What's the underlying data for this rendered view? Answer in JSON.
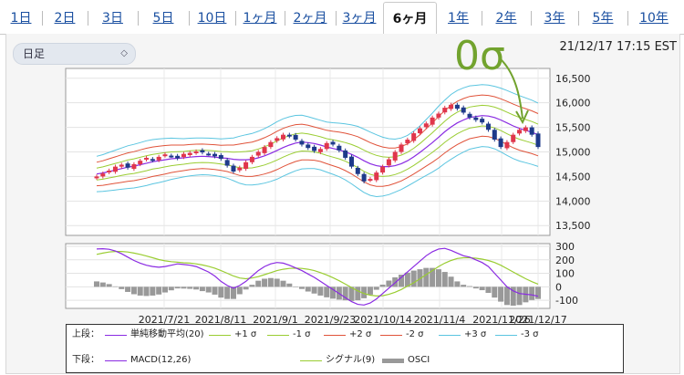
{
  "tabs": [
    "1日",
    "2日",
    "3日",
    "5日",
    "10日",
    "1ヶ月",
    "2ヶ月",
    "3ヶ月",
    "6ヶ月",
    "1年",
    "2年",
    "3年",
    "5年",
    "10年"
  ],
  "active_tab": 8,
  "period_select": {
    "value": "日足"
  },
  "timestamp": "21/12/17 17:15 EST",
  "annotation": "0σ",
  "colors": {
    "accent": "#1a4fa0",
    "sma": "#8a2be2",
    "sig1": "#9acd32",
    "sig2": "#e0533a",
    "sig3": "#5bc5e0",
    "up": "#e0364c",
    "down": "#1e3a8a",
    "osci": "#999999",
    "annot": "#72a32e"
  },
  "legend": {
    "top_label": "上段：",
    "bottom_label": "下段：",
    "top_items": [
      {
        "label": "単純移動平均(20)",
        "color_key": "sma"
      },
      {
        "label": "+1 σ",
        "color_key": "sig1"
      },
      {
        "label": "-1 σ",
        "color_key": "sig1"
      },
      {
        "label": "+2 σ",
        "color_key": "sig2"
      },
      {
        "label": "-2 σ",
        "color_key": "sig2"
      },
      {
        "label": "+3 σ",
        "color_key": "sig3"
      },
      {
        "label": "-3 σ",
        "color_key": "sig3"
      }
    ],
    "bottom_items": [
      {
        "label": "MACD(12,26)",
        "color_key": "sma"
      },
      {
        "label": "シグナル(9)",
        "color_key": "sig1"
      },
      {
        "label": "OSCI",
        "color_key": "osci"
      }
    ]
  },
  "chart_data": {
    "type": "line",
    "x_tick_labels": [
      "2021/7/21",
      "2021/8/11",
      "2021/9/1",
      "2021/9/23",
      "2021/10/14",
      "2021/11/4",
      "2021/11/26",
      "2021/12/17"
    ],
    "price": {
      "ylim": [
        13300,
        16700
      ],
      "y_ticks": [
        "16,500",
        "16,000",
        "15,500",
        "15,000",
        "14,500",
        "14,000",
        "13,500"
      ],
      "y_tick_values": [
        16500,
        16000,
        15500,
        15000,
        14500,
        14000,
        13500
      ],
      "close": [
        14500,
        14560,
        14620,
        14700,
        14740,
        14680,
        14750,
        14820,
        14880,
        14830,
        14900,
        14950,
        14920,
        14870,
        14960,
        14980,
        15010,
        14990,
        14960,
        14910,
        14860,
        14720,
        14600,
        14680,
        14790,
        14900,
        15000,
        15100,
        15200,
        15280,
        15350,
        15320,
        15250,
        15150,
        15080,
        15020,
        15060,
        15180,
        15150,
        15030,
        14880,
        14700,
        14550,
        14400,
        14450,
        14580,
        14700,
        14850,
        15000,
        15150,
        15250,
        15380,
        15480,
        15580,
        15700,
        15780,
        15900,
        15960,
        15880,
        15800,
        15700,
        15650,
        15600,
        15450,
        15250,
        15100,
        15200,
        15350,
        15450,
        15500,
        15350,
        15100
      ],
      "sma": [
        14550,
        14570,
        14600,
        14630,
        14660,
        14690,
        14710,
        14740,
        14770,
        14800,
        14820,
        14840,
        14860,
        14870,
        14880,
        14895,
        14905,
        14910,
        14905,
        14895,
        14880,
        14870,
        14850,
        14840,
        14840,
        14850,
        14880,
        14920,
        14970,
        15030,
        15090,
        15140,
        15180,
        15200,
        15190,
        15170,
        15140,
        15100,
        15070,
        15040,
        15000,
        14950,
        14890,
        14820,
        14760,
        14720,
        14700,
        14700,
        14720,
        14760,
        14820,
        14900,
        14990,
        15090,
        15190,
        15300,
        15410,
        15510,
        15590,
        15650,
        15700,
        15720,
        15740,
        15730,
        15700,
        15650,
        15590,
        15530,
        15480,
        15440,
        15400,
        15350
      ],
      "band_width_1sigma": [
        120,
        125,
        130,
        135,
        140,
        145,
        148,
        150,
        152,
        150,
        148,
        145,
        140,
        135,
        130,
        128,
        126,
        125,
        125,
        126,
        128,
        135,
        145,
        160,
        170,
        175,
        180,
        185,
        190,
        195,
        195,
        192,
        188,
        182,
        176,
        170,
        168,
        170,
        175,
        182,
        190,
        200,
        210,
        215,
        215,
        210,
        200,
        190,
        180,
        175,
        172,
        175,
        180,
        190,
        200,
        210,
        215,
        220,
        220,
        218,
        215,
        212,
        210,
        210,
        212,
        216,
        220,
        222,
        222,
        220,
        218,
        215
      ]
    },
    "macd": {
      "ylim": [
        -160,
        320
      ],
      "y_ticks": [
        "300",
        "200",
        "100",
        "0",
        "-100"
      ],
      "y_tick_values": [
        300,
        200,
        100,
        0,
        -100
      ],
      "macd": [
        280,
        282,
        278,
        265,
        245,
        220,
        195,
        175,
        160,
        150,
        145,
        150,
        160,
        170,
        165,
        160,
        150,
        130,
        110,
        80,
        40,
        10,
        -10,
        10,
        40,
        80,
        120,
        150,
        170,
        180,
        175,
        160,
        140,
        120,
        95,
        70,
        40,
        10,
        -20,
        -50,
        -80,
        -110,
        -130,
        -135,
        -120,
        -90,
        -50,
        -10,
        30,
        70,
        110,
        150,
        190,
        230,
        260,
        280,
        285,
        270,
        250,
        230,
        220,
        200,
        180,
        150,
        100,
        50,
        0,
        -30,
        -50,
        -55,
        -60,
        -70
      ],
      "signal": [
        240,
        250,
        258,
        262,
        262,
        258,
        250,
        240,
        228,
        215,
        202,
        192,
        186,
        182,
        178,
        175,
        170,
        162,
        152,
        138,
        120,
        100,
        80,
        65,
        60,
        65,
        75,
        90,
        105,
        120,
        130,
        136,
        138,
        136,
        130,
        120,
        105,
        88,
        68,
        45,
        20,
        -5,
        -30,
        -50,
        -62,
        -68,
        -66,
        -56,
        -40,
        -20,
        5,
        30,
        60,
        90,
        120,
        150,
        175,
        195,
        210,
        215,
        215,
        212,
        205,
        195,
        180,
        160,
        135,
        110,
        85,
        60,
        38,
        20
      ]
    },
    "candles": {
      "up_color": "red",
      "down_color": "navy"
    }
  }
}
